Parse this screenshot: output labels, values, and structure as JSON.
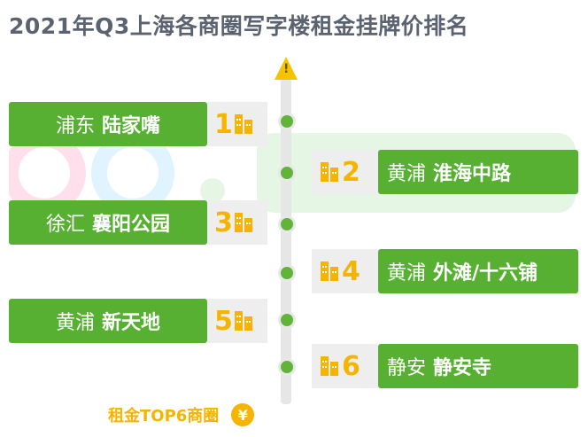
{
  "title": "2021年Q3上海各商圈写字楼租金挂牌价排名",
  "colors": {
    "bar_green": "#58b033",
    "rank_yellow": "#f4b400",
    "arrow_yellow": "#f7c300",
    "title_gray": "#5b6270",
    "timeline_gray": "#e6e6e6"
  },
  "rankings": [
    {
      "rank": "1",
      "district": "浦东",
      "area": "陆家嘴",
      "side": "left"
    },
    {
      "rank": "2",
      "district": "黄浦",
      "area": "淮海中路",
      "side": "right"
    },
    {
      "rank": "3",
      "district": "徐汇",
      "area": "襄阳公园",
      "side": "left"
    },
    {
      "rank": "4",
      "district": "黄浦",
      "area": "外滩/十六铺",
      "side": "right"
    },
    {
      "rank": "5",
      "district": "黄浦",
      "area": "新天地",
      "side": "left"
    },
    {
      "rank": "6",
      "district": "静安",
      "area": "静安寺",
      "side": "right"
    }
  ],
  "footer": {
    "label": "租金TOP6商圈",
    "coin_symbol": "¥"
  },
  "icons": {
    "arrow": "up-arrow-icon",
    "building": "building-icon",
    "coin": "yen-coin-icon"
  }
}
